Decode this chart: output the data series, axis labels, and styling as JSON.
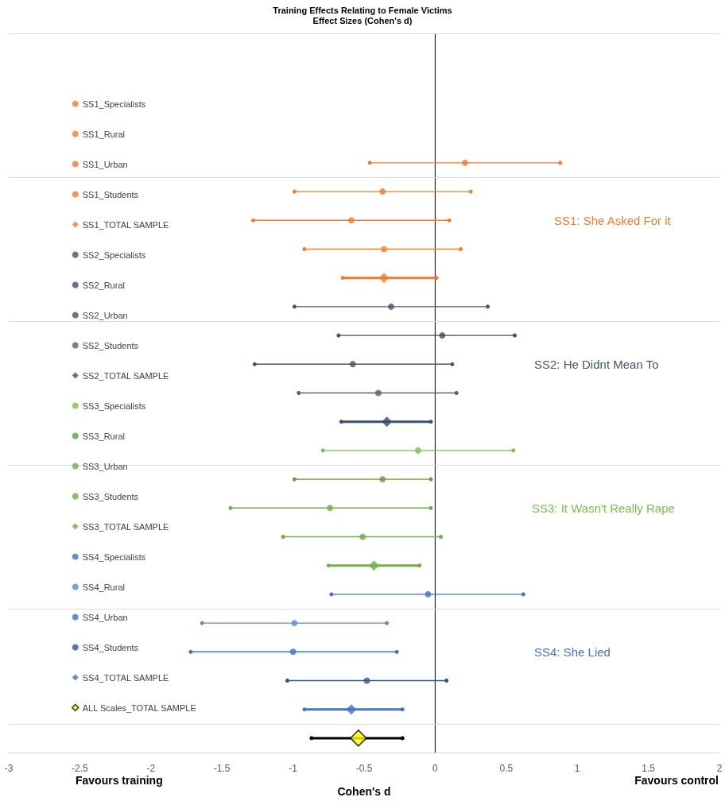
{
  "chart_data": {
    "type": "scatter",
    "orientation": "horizontal",
    "title": "Training Effects Relating to Female Victims",
    "subtitle": "Effect Sizes (Cohen's d)",
    "xlabel": "Cohen's d",
    "categories": [
      null,
      null,
      null,
      null,
      null,
      null,
      null,
      null,
      null,
      null,
      null,
      null,
      null,
      null,
      null,
      null,
      null,
      null,
      null,
      null,
      null,
      null,
      null,
      null,
      null
    ],
    "xlim": [
      -3,
      2
    ],
    "xticks": [
      -3,
      -2.5,
      -2,
      -1.5,
      -1,
      -0.5,
      0,
      0.5,
      1,
      1.5,
      2
    ],
    "grid": "y",
    "legend": "left",
    "marker": "circle",
    "annotations": [
      "SS1: She Asked For it",
      "SS2: He Didnt Mean To",
      "SS3: It Wasn't Really Rape",
      "SS4: She Lied",
      "Favours training",
      "Favours control"
    ],
    "series": [
      {
        "name": "SS1_Specialists",
        "color": "#ed7d31",
        "values": [
          null,
          null,
          null,
          null,
          0.21,
          null,
          null,
          null,
          null,
          null,
          null,
          null,
          null,
          null,
          null,
          null,
          null,
          null,
          null,
          null,
          null,
          null,
          null,
          null,
          null
        ],
        "errors": [
          null,
          null,
          null,
          null,
          [
            -0.46,
            0.88
          ],
          null,
          null,
          null,
          null,
          null,
          null,
          null,
          null,
          null,
          null,
          null,
          null,
          null,
          null,
          null,
          null,
          null,
          null,
          null,
          null
        ]
      },
      {
        "name": "SS1_Rural",
        "color": "#ed7d31",
        "values": [
          null,
          null,
          null,
          null,
          null,
          -0.37,
          null,
          null,
          null,
          null,
          null,
          null,
          null,
          null,
          null,
          null,
          null,
          null,
          null,
          null,
          null,
          null,
          null,
          null,
          null
        ],
        "errors": [
          null,
          null,
          null,
          null,
          null,
          [
            -0.99,
            0.25
          ],
          null,
          null,
          null,
          null,
          null,
          null,
          null,
          null,
          null,
          null,
          null,
          null,
          null,
          null,
          null,
          null,
          null,
          null,
          null
        ]
      },
      {
        "name": "SS1_Urban",
        "color": "#ed7d31",
        "values": [
          null,
          null,
          null,
          null,
          null,
          null,
          -0.59,
          null,
          null,
          null,
          null,
          null,
          null,
          null,
          null,
          null,
          null,
          null,
          null,
          null,
          null,
          null,
          null,
          null,
          null
        ],
        "errors": [
          null,
          null,
          null,
          null,
          null,
          null,
          [
            -1.28,
            0.1
          ],
          null,
          null,
          null,
          null,
          null,
          null,
          null,
          null,
          null,
          null,
          null,
          null,
          null,
          null,
          null,
          null,
          null,
          null
        ]
      },
      {
        "name": "SS1_Students",
        "color": "#ed7d31",
        "values": [
          null,
          null,
          null,
          null,
          null,
          null,
          null,
          -0.36,
          null,
          null,
          null,
          null,
          null,
          null,
          null,
          null,
          null,
          null,
          null,
          null,
          null,
          null,
          null,
          null,
          null
        ],
        "errors": [
          null,
          null,
          null,
          null,
          null,
          null,
          null,
          [
            -0.92,
            0.18
          ],
          null,
          null,
          null,
          null,
          null,
          null,
          null,
          null,
          null,
          null,
          null,
          null,
          null,
          null,
          null,
          null,
          null
        ]
      },
      {
        "name": "SS1_TOTAL SAMPLE",
        "color": "#ed7d31",
        "marker": "diamond",
        "values": [
          null,
          null,
          null,
          null,
          null,
          null,
          null,
          null,
          -0.36,
          null,
          null,
          null,
          null,
          null,
          null,
          null,
          null,
          null,
          null,
          null,
          null,
          null,
          null,
          null,
          null
        ],
        "errors": [
          null,
          null,
          null,
          null,
          null,
          null,
          null,
          null,
          [
            -0.65,
            0.01
          ],
          null,
          null,
          null,
          null,
          null,
          null,
          null,
          null,
          null,
          null,
          null,
          null,
          null,
          null,
          null,
          null
        ]
      },
      {
        "name": "SS2_Specialists",
        "color": "#44546a",
        "values": [
          null,
          null,
          null,
          null,
          null,
          null,
          null,
          null,
          null,
          -0.31,
          null,
          null,
          null,
          null,
          null,
          null,
          null,
          null,
          null,
          null,
          null,
          null,
          null,
          null,
          null
        ],
        "errors": [
          null,
          null,
          null,
          null,
          null,
          null,
          null,
          null,
          null,
          [
            -0.99,
            0.37
          ],
          null,
          null,
          null,
          null,
          null,
          null,
          null,
          null,
          null,
          null,
          null,
          null,
          null,
          null,
          null
        ]
      },
      {
        "name": "SS2_Rural",
        "color": "#3b4e6e",
        "values": [
          null,
          null,
          null,
          null,
          null,
          null,
          null,
          null,
          null,
          null,
          0.05,
          null,
          null,
          null,
          null,
          null,
          null,
          null,
          null,
          null,
          null,
          null,
          null,
          null,
          null
        ],
        "errors": [
          null,
          null,
          null,
          null,
          null,
          null,
          null,
          null,
          null,
          null,
          [
            -0.68,
            0.56
          ],
          null,
          null,
          null,
          null,
          null,
          null,
          null,
          null,
          null,
          null,
          null,
          null,
          null,
          null
        ]
      },
      {
        "name": "SS2_Urban",
        "color": "#44546a",
        "values": [
          null,
          null,
          null,
          null,
          null,
          null,
          null,
          null,
          null,
          null,
          null,
          -0.58,
          null,
          null,
          null,
          null,
          null,
          null,
          null,
          null,
          null,
          null,
          null,
          null,
          null
        ],
        "errors": [
          null,
          null,
          null,
          null,
          null,
          null,
          null,
          null,
          null,
          null,
          null,
          [
            -1.27,
            0.12
          ],
          null,
          null,
          null,
          null,
          null,
          null,
          null,
          null,
          null,
          null,
          null,
          null,
          null
        ]
      },
      {
        "name": "SS2_Students",
        "color": "#5a6170",
        "values": [
          null,
          null,
          null,
          null,
          null,
          null,
          null,
          null,
          null,
          null,
          null,
          null,
          -0.4,
          null,
          null,
          null,
          null,
          null,
          null,
          null,
          null,
          null,
          null,
          null,
          null
        ],
        "errors": [
          null,
          null,
          null,
          null,
          null,
          null,
          null,
          null,
          null,
          null,
          null,
          null,
          [
            -0.96,
            0.15
          ],
          null,
          null,
          null,
          null,
          null,
          null,
          null,
          null,
          null,
          null,
          null,
          null
        ]
      },
      {
        "name": "SS2_TOTAL SAMPLE",
        "color": "#3b4e6e",
        "marker": "diamond",
        "values": [
          null,
          null,
          null,
          null,
          null,
          null,
          null,
          null,
          null,
          null,
          null,
          null,
          null,
          -0.34,
          null,
          null,
          null,
          null,
          null,
          null,
          null,
          null,
          null,
          null,
          null
        ],
        "errors": [
          null,
          null,
          null,
          null,
          null,
          null,
          null,
          null,
          null,
          null,
          null,
          null,
          null,
          [
            -0.66,
            -0.03
          ],
          null,
          null,
          null,
          null,
          null,
          null,
          null,
          null,
          null,
          null,
          null
        ]
      },
      {
        "name": "SS3_Specialists",
        "color": "#7dbb4c",
        "values": [
          null,
          null,
          null,
          null,
          null,
          null,
          null,
          null,
          null,
          null,
          null,
          null,
          null,
          null,
          -0.12,
          null,
          null,
          null,
          null,
          null,
          null,
          null,
          null,
          null,
          null
        ],
        "errors": [
          null,
          null,
          null,
          null,
          null,
          null,
          null,
          null,
          null,
          null,
          null,
          null,
          null,
          null,
          [
            -0.79,
            0.55
          ],
          null,
          null,
          null,
          null,
          null,
          null,
          null,
          null,
          null,
          null
        ]
      },
      {
        "name": "SS3_Rural",
        "color": "#5f9e3a",
        "values": [
          null,
          null,
          null,
          null,
          null,
          null,
          null,
          null,
          null,
          null,
          null,
          null,
          null,
          null,
          null,
          -0.37,
          null,
          null,
          null,
          null,
          null,
          null,
          null,
          null,
          null
        ],
        "errors": [
          null,
          null,
          null,
          null,
          null,
          null,
          null,
          null,
          null,
          null,
          null,
          null,
          null,
          null,
          null,
          [
            -0.99,
            -0.03
          ],
          null,
          null,
          null,
          null,
          null,
          null,
          null,
          null,
          null
        ]
      },
      {
        "name": "SS3_Urban",
        "color": "#70ad47",
        "values": [
          null,
          null,
          null,
          null,
          null,
          null,
          null,
          null,
          null,
          null,
          null,
          null,
          null,
          null,
          null,
          null,
          -0.74,
          null,
          null,
          null,
          null,
          null,
          null,
          null,
          null
        ],
        "errors": [
          null,
          null,
          null,
          null,
          null,
          null,
          null,
          null,
          null,
          null,
          null,
          null,
          null,
          null,
          null,
          null,
          [
            -1.44,
            -0.03
          ],
          null,
          null,
          null,
          null,
          null,
          null,
          null,
          null
        ]
      },
      {
        "name": "SS3_Students",
        "color": "#70ad47",
        "values": [
          null,
          null,
          null,
          null,
          null,
          null,
          null,
          null,
          null,
          null,
          null,
          null,
          null,
          null,
          null,
          null,
          null,
          -0.51,
          null,
          null,
          null,
          null,
          null,
          null,
          null
        ],
        "errors": [
          null,
          null,
          null,
          null,
          null,
          null,
          null,
          null,
          null,
          null,
          null,
          null,
          null,
          null,
          null,
          null,
          null,
          [
            -1.07,
            0.04
          ],
          null,
          null,
          null,
          null,
          null,
          null,
          null
        ]
      },
      {
        "name": "SS3_TOTAL SAMPLE",
        "color": "#70ad47",
        "marker": "diamond",
        "values": [
          null,
          null,
          null,
          null,
          null,
          null,
          null,
          null,
          null,
          null,
          null,
          null,
          null,
          null,
          null,
          null,
          null,
          null,
          -0.43,
          null,
          null,
          null,
          null,
          null,
          null
        ],
        "errors": [
          null,
          null,
          null,
          null,
          null,
          null,
          null,
          null,
          null,
          null,
          null,
          null,
          null,
          null,
          null,
          null,
          null,
          null,
          [
            -0.75,
            -0.11
          ],
          null,
          null,
          null,
          null,
          null,
          null
        ]
      },
      {
        "name": "SS4_Specialists",
        "color": "#4472c4",
        "values": [
          null,
          null,
          null,
          null,
          null,
          null,
          null,
          null,
          null,
          null,
          null,
          null,
          null,
          null,
          null,
          null,
          null,
          null,
          null,
          -0.05,
          null,
          null,
          null,
          null,
          null
        ],
        "errors": [
          null,
          null,
          null,
          null,
          null,
          null,
          null,
          null,
          null,
          null,
          null,
          null,
          null,
          null,
          null,
          null,
          null,
          null,
          null,
          [
            -0.73,
            0.62
          ],
          null,
          null,
          null,
          null,
          null
        ]
      },
      {
        "name": "SS4_Rural",
        "color": "#5b8bd6",
        "values": [
          null,
          null,
          null,
          null,
          null,
          null,
          null,
          null,
          null,
          null,
          null,
          null,
          null,
          null,
          null,
          null,
          null,
          null,
          null,
          null,
          -0.99,
          null,
          null,
          null,
          null
        ],
        "errors": [
          null,
          null,
          null,
          null,
          null,
          null,
          null,
          null,
          null,
          null,
          null,
          null,
          null,
          null,
          null,
          null,
          null,
          null,
          null,
          null,
          [
            -1.64,
            -0.34
          ],
          null,
          null,
          null,
          null
        ]
      },
      {
        "name": "SS4_Urban",
        "color": "#4472c4",
        "values": [
          null,
          null,
          null,
          null,
          null,
          null,
          null,
          null,
          null,
          null,
          null,
          null,
          null,
          null,
          null,
          null,
          null,
          null,
          null,
          null,
          null,
          -1.0,
          null,
          null,
          null
        ],
        "errors": [
          null,
          null,
          null,
          null,
          null,
          null,
          null,
          null,
          null,
          null,
          null,
          null,
          null,
          null,
          null,
          null,
          null,
          null,
          null,
          null,
          null,
          [
            -1.72,
            -0.27
          ],
          null,
          null,
          null
        ]
      },
      {
        "name": "SS4_Students",
        "color": "#2f5597",
        "values": [
          null,
          null,
          null,
          null,
          null,
          null,
          null,
          null,
          null,
          null,
          null,
          null,
          null,
          null,
          null,
          null,
          null,
          null,
          null,
          null,
          null,
          null,
          -0.48,
          null,
          null
        ],
        "errors": [
          null,
          null,
          null,
          null,
          null,
          null,
          null,
          null,
          null,
          null,
          null,
          null,
          null,
          null,
          null,
          null,
          null,
          null,
          null,
          null,
          null,
          null,
          [
            -1.04,
            0.08
          ],
          null,
          null
        ]
      },
      {
        "name": "SS4_TOTAL SAMPLE",
        "color": "#4472c4",
        "marker": "diamond",
        "values": [
          null,
          null,
          null,
          null,
          null,
          null,
          null,
          null,
          null,
          null,
          null,
          null,
          null,
          null,
          null,
          null,
          null,
          null,
          null,
          null,
          null,
          null,
          null,
          -0.59,
          null
        ],
        "errors": [
          null,
          null,
          null,
          null,
          null,
          null,
          null,
          null,
          null,
          null,
          null,
          null,
          null,
          null,
          null,
          null,
          null,
          null,
          null,
          null,
          null,
          null,
          null,
          [
            -0.92,
            -0.23
          ],
          null
        ]
      },
      {
        "name": "ALL Scales_TOTAL SAMPLE",
        "color": "#000000",
        "colors": [
          null,
          null,
          null,
          null,
          null,
          null,
          null,
          null,
          null,
          null,
          null,
          null,
          null,
          null,
          null,
          null,
          null,
          null,
          null,
          null,
          null,
          null,
          null,
          null,
          "#ffff00"
        ],
        "marker": "diamond",
        "values": [
          null,
          null,
          null,
          null,
          null,
          null,
          null,
          null,
          null,
          null,
          null,
          null,
          null,
          null,
          null,
          null,
          null,
          null,
          null,
          null,
          null,
          null,
          null,
          null,
          -0.54
        ],
        "errors": [
          null,
          null,
          null,
          null,
          null,
          null,
          null,
          null,
          null,
          null,
          null,
          null,
          null,
          null,
          null,
          null,
          null,
          null,
          null,
          null,
          null,
          null,
          null,
          null,
          [
            -0.87,
            -0.23
          ]
        ]
      }
    ]
  }
}
